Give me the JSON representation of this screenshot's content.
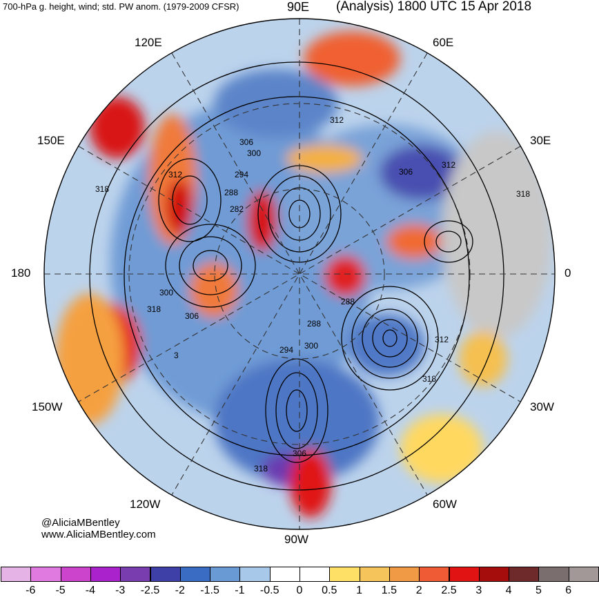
{
  "header": {
    "left_title": "700-hPa g. height, wind; std. PW anom. (1979-2009 CFSR)",
    "right_title": "(Analysis) 1800 UTC 15 Apr 2018"
  },
  "longitude_labels": {
    "lon_90e": "90E",
    "lon_120e": "120E",
    "lon_60e": "60E",
    "lon_150e": "150E",
    "lon_30e": "30E",
    "lon_180": "180",
    "lon_0": "0",
    "lon_150w": "150W",
    "lon_30w": "30W",
    "lon_120w": "120W",
    "lon_60w": "60W",
    "lon_90w": "90W"
  },
  "contour_labels": [
    "312",
    "306",
    "300",
    "294",
    "288",
    "282",
    "312",
    "318",
    "312",
    "306",
    "318",
    "300",
    "318",
    "306",
    "288",
    "288",
    "300",
    "294",
    "312",
    "318",
    "306",
    "318",
    "3"
  ],
  "credits": {
    "handle": "@AliciaMBentley",
    "website": "www.AliciaMBentley.com"
  },
  "colorbar": {
    "colors": [
      "#e6b3e6",
      "#e07ae0",
      "#cc44cc",
      "#aa22cc",
      "#7a3db0",
      "#3f3fa8",
      "#3b6cc4",
      "#6a9ad4",
      "#a7c8e8",
      "#ffffff",
      "#ffffff",
      "#ffe066",
      "#f5c45a",
      "#f09a46",
      "#ef5b35",
      "#e11313",
      "#a50d0d",
      "#6e2a2a",
      "#7a6e6e",
      "#a39898"
    ],
    "tick_labels": [
      "-6",
      "-5",
      "-4",
      "-3",
      "-2.5",
      "-2",
      "-1.5",
      "-1",
      "-0.5",
      "0",
      "0.5",
      "1",
      "1.5",
      "2",
      "2.5",
      "3",
      "4",
      "5",
      "6"
    ]
  }
}
